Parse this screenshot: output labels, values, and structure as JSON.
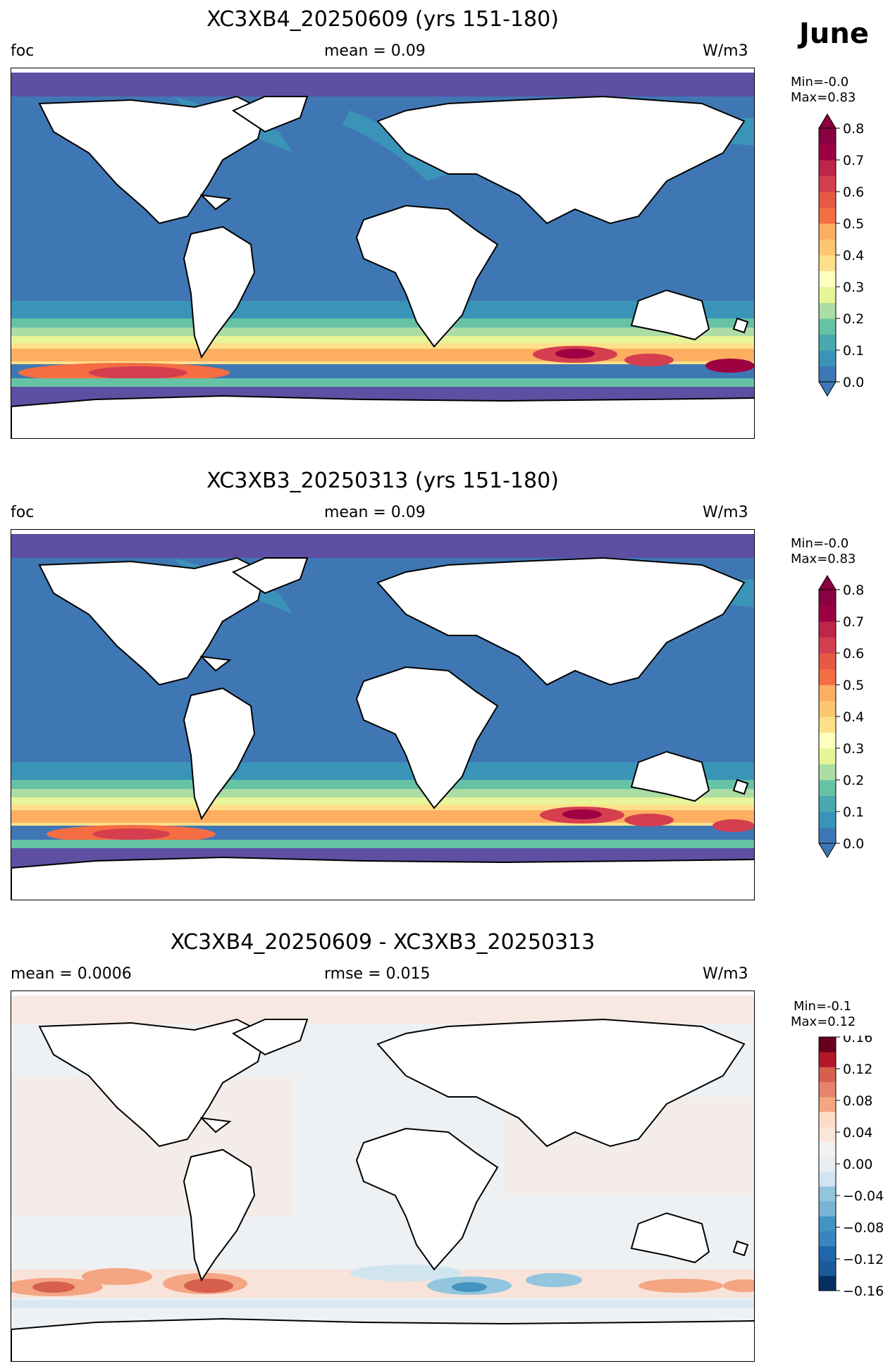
{
  "figure": {
    "month_label": "June"
  },
  "panels": [
    {
      "title": "XC3XB4_20250609 (yrs 151-180)",
      "left_label": "foc",
      "center_label": "mean = 0.09",
      "right_label": "W/m3",
      "minmax": [
        "Min=-0.0",
        "Max=0.83"
      ],
      "colorbar_ticks": [
        "0.8",
        "0.7",
        "0.6",
        "0.5",
        "0.4",
        "0.3",
        "0.2",
        "0.1",
        "0.0"
      ]
    },
    {
      "title": "XC3XB3_20250313 (yrs 151-180)",
      "left_label": "foc",
      "center_label": "mean = 0.09",
      "right_label": "W/m3",
      "minmax": [
        "Min=-0.0",
        "Max=0.83"
      ],
      "colorbar_ticks": [
        "0.8",
        "0.7",
        "0.6",
        "0.5",
        "0.4",
        "0.3",
        "0.2",
        "0.1",
        "0.0"
      ]
    },
    {
      "title": "XC3XB4_20250609 - XC3XB3_20250313",
      "left_label": "mean = 0.0006",
      "center_label": "rmse = 0.015",
      "right_label": "W/m3",
      "minmax": [
        "Min=-0.1",
        "Max=0.12"
      ],
      "colorbar_ticks": [
        "0.16",
        "0.12",
        "0.08",
        "0.04",
        "0.00",
        "−0.04",
        "−0.08",
        "−0.12",
        "−0.16"
      ]
    }
  ],
  "chart_data": [
    {
      "type": "heatmap",
      "title": "XC3XB4_20250609 (yrs 151-180)",
      "variable": "foc",
      "units": "W/m3",
      "mean": 0.09,
      "min": -0.0,
      "max": 0.83,
      "colorbar": {
        "cmap": "Spectral_r",
        "range": [
          0.0,
          0.8
        ],
        "extend": "both",
        "ticks": [
          0.0,
          0.1,
          0.2,
          0.3,
          0.4,
          0.5,
          0.6,
          0.7,
          0.8
        ]
      },
      "zonal_profile": {
        "lat": [
          80,
          60,
          40,
          20,
          0,
          -20,
          -35,
          -45,
          -50,
          -55,
          -60,
          -68
        ],
        "value": [
          0.02,
          0.12,
          0.07,
          0.06,
          0.05,
          0.07,
          0.15,
          0.45,
          0.65,
          0.45,
          0.12,
          0.02
        ]
      }
    },
    {
      "type": "heatmap",
      "title": "XC3XB3_20250313 (yrs 151-180)",
      "variable": "foc",
      "units": "W/m3",
      "mean": 0.09,
      "min": -0.0,
      "max": 0.83,
      "colorbar": {
        "cmap": "Spectral_r",
        "range": [
          0.0,
          0.8
        ],
        "extend": "both",
        "ticks": [
          0.0,
          0.1,
          0.2,
          0.3,
          0.4,
          0.5,
          0.6,
          0.7,
          0.8
        ]
      },
      "zonal_profile": {
        "lat": [
          80,
          60,
          40,
          20,
          0,
          -20,
          -35,
          -45,
          -50,
          -55,
          -60,
          -68
        ],
        "value": [
          0.02,
          0.12,
          0.07,
          0.06,
          0.05,
          0.07,
          0.15,
          0.45,
          0.65,
          0.45,
          0.12,
          0.02
        ]
      }
    },
    {
      "type": "heatmap",
      "title": "XC3XB4_20250609 - XC3XB3_20250313",
      "units": "W/m3",
      "mean": 0.0006,
      "rmse": 0.015,
      "min": -0.1,
      "max": 0.12,
      "colorbar": {
        "cmap": "RdBu_r",
        "range": [
          -0.16,
          0.16
        ],
        "ticks": [
          -0.16,
          -0.12,
          -0.08,
          -0.04,
          0.0,
          0.04,
          0.08,
          0.12,
          0.16
        ]
      }
    }
  ],
  "colors": {
    "spectral": [
      "#5e4fa2",
      "#3f77b4",
      "#3a94b8",
      "#66c2a5",
      "#abdda4",
      "#e6f598",
      "#ffffbf",
      "#fee08b",
      "#fdae61",
      "#f46d43",
      "#d53e4f",
      "#9e0142"
    ],
    "rdbu": [
      "#053061",
      "#2166ac",
      "#4393c3",
      "#92c5de",
      "#d1e5f0",
      "#f2f2f2",
      "#fddbc7",
      "#f4a582",
      "#d6604d",
      "#b2182b",
      "#67001f"
    ],
    "land": "#ffffff",
    "coast": "#000000"
  }
}
